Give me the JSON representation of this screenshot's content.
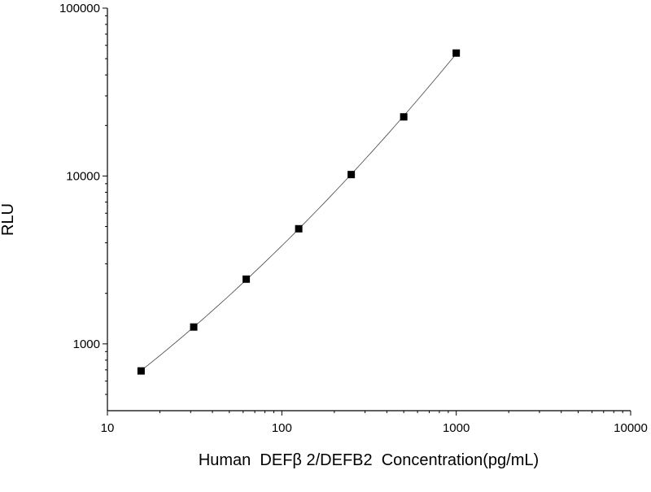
{
  "chart_data": {
    "type": "scatter",
    "xlabel": "Human  DEFβ 2/DEFB2  Concentration(pg/mL)",
    "ylabel": "RLU",
    "xscale": "log",
    "yscale": "log",
    "xlim": [
      10,
      10000
    ],
    "ylim": [
      400,
      100000
    ],
    "grid": false,
    "x_ticks": [
      {
        "value": 10,
        "label": "10"
      },
      {
        "value": 100,
        "label": "100"
      },
      {
        "value": 1000,
        "label": "1000"
      },
      {
        "value": 10000,
        "label": "10000"
      }
    ],
    "y_ticks": [
      {
        "value": 1000,
        "label": "1000"
      },
      {
        "value": 10000,
        "label": "10000"
      },
      {
        "value": 100000,
        "label": "100000"
      }
    ],
    "series": [
      {
        "points": [
          {
            "x": 15.6,
            "y": 690
          },
          {
            "x": 31.25,
            "y": 1260
          },
          {
            "x": 62.5,
            "y": 2430
          },
          {
            "x": 125,
            "y": 4850
          },
          {
            "x": 250,
            "y": 10200
          },
          {
            "x": 500,
            "y": 22500
          },
          {
            "x": 1000,
            "y": 54000
          }
        ],
        "marker": "square",
        "color": "#000000",
        "fit_line": true
      }
    ]
  }
}
